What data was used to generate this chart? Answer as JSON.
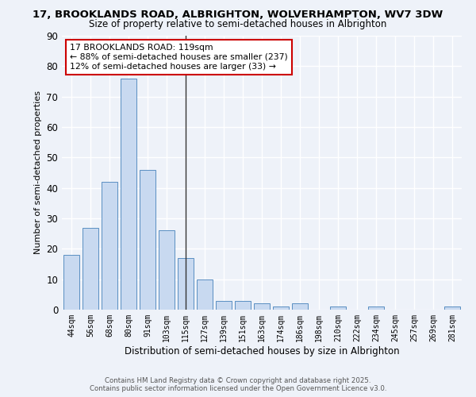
{
  "title_line1": "17, BROOKLANDS ROAD, ALBRIGHTON, WOLVERHAMPTON, WV7 3DW",
  "title_line2": "Size of property relative to semi-detached houses in Albrighton",
  "xlabel": "Distribution of semi-detached houses by size in Albrighton",
  "ylabel": "Number of semi-detached properties",
  "categories": [
    "44sqm",
    "56sqm",
    "68sqm",
    "80sqm",
    "91sqm",
    "103sqm",
    "115sqm",
    "127sqm",
    "139sqm",
    "151sqm",
    "163sqm",
    "174sqm",
    "186sqm",
    "198sqm",
    "210sqm",
    "222sqm",
    "234sqm",
    "245sqm",
    "257sqm",
    "269sqm",
    "281sqm"
  ],
  "values": [
    18,
    27,
    42,
    76,
    46,
    26,
    17,
    10,
    3,
    3,
    2,
    1,
    2,
    0,
    1,
    0,
    1,
    0,
    0,
    0,
    1
  ],
  "bar_color": "#c8d9f0",
  "bar_edge_color": "#5a8fc2",
  "highlight_index": 6,
  "highlight_line_color": "#333333",
  "annotation_text": "17 BROOKLANDS ROAD: 119sqm\n← 88% of semi-detached houses are smaller (237)\n12% of semi-detached houses are larger (33) →",
  "annotation_box_color": "#ffffff",
  "annotation_box_edge": "#cc0000",
  "ylim": [
    0,
    90
  ],
  "yticks": [
    0,
    10,
    20,
    30,
    40,
    50,
    60,
    70,
    80,
    90
  ],
  "background_color": "#eef2f9",
  "grid_color": "#ffffff",
  "footer_line1": "Contains HM Land Registry data © Crown copyright and database right 2025.",
  "footer_line2": "Contains public sector information licensed under the Open Government Licence v3.0."
}
